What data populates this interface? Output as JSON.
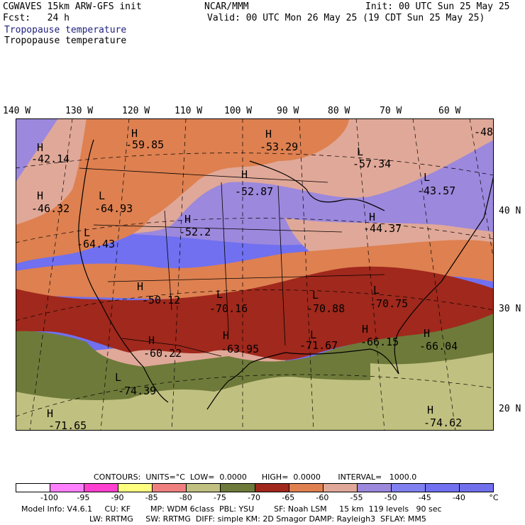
{
  "header": {
    "model": "CGWAVES 15km ARW-GFS init",
    "center": "NCAR/MMM",
    "init": "Init: 00 UTC Sun 25 May 25",
    "fcst": "Fcst:   24 h",
    "valid": "Valid: 00 UTC Mon 26 May 25 (19 CDT Sun 25 May 25)",
    "field_blue": "Tropopause temperature",
    "field_black": "Tropopause temperature"
  },
  "lon_labels": [
    "140 W",
    "130 W",
    "120 W",
    "110 W",
    "100 W",
    "90 W",
    "80 W",
    "70 W",
    "60 W"
  ],
  "lat_labels": [
    "40 N",
    "30 N",
    "20 N"
  ],
  "centers": [
    {
      "type": "H",
      "value": "-42.14"
    },
    {
      "type": "H",
      "value": "-59.85"
    },
    {
      "type": "H",
      "value": "-53.29"
    },
    {
      "type": "L",
      "value": "-57.34"
    },
    {
      "type": "-48",
      "value": ""
    },
    {
      "type": "H",
      "value": "-46.32"
    },
    {
      "type": "L",
      "value": "-64.93"
    },
    {
      "type": "H",
      "value": "-52.87"
    },
    {
      "type": "L",
      "value": "-43.57"
    },
    {
      "type": "L",
      "value": "-64.43"
    },
    {
      "type": "H",
      "value": "-52.2"
    },
    {
      "type": "H",
      "value": "-44.37"
    },
    {
      "type": "H",
      "value": "-50.12"
    },
    {
      "type": "L",
      "value": "-70.16"
    },
    {
      "type": "L",
      "value": "-70.88"
    },
    {
      "type": "L",
      "value": "-70.75"
    },
    {
      "type": "H",
      "value": "-60.22"
    },
    {
      "type": "H",
      "value": "-63.95"
    },
    {
      "type": "L",
      "value": "-71.67"
    },
    {
      "type": "H",
      "value": "-66.15"
    },
    {
      "type": "H",
      "value": "-66.04"
    },
    {
      "type": "L",
      "value": "-74.39"
    },
    {
      "type": "H",
      "value": "-71.65"
    },
    {
      "type": "H",
      "value": "-74.62"
    }
  ],
  "contours": {
    "label": "CONTOURS:  UNITS=°C  LOW=  0.0000      HIGH=  0.0000       INTERVAL=   1000.0"
  },
  "colorbar": {
    "colors": [
      "#ffffff",
      "#ff80ff",
      "#ff40d0",
      "#ffff80",
      "#f08080",
      "#c0c080",
      "#6e7a3a",
      "#a0281c",
      "#de8050",
      "#e0a898",
      "#9c88dc",
      "#8080f0",
      "#7070f0",
      "#7070ec"
    ],
    "ticks": [
      "-100",
      "-95",
      "-90",
      "-85",
      "-80",
      "-75",
      "-70",
      "-65",
      "-60",
      "-55",
      "-50",
      "-45",
      "-40",
      "°C"
    ]
  },
  "footer": {
    "line1": "Model Info: V4.6.1     CU: KF        MP: WDM 6class  PBL: YSU        SF: Noah LSM     15 km  119 levels   90 sec",
    "line2": "LW: RRTMG     SW: RRTMG  DIFF: simple KM: 2D Smagor DAMP: Rayleigh3  SFLAY: MM5"
  }
}
